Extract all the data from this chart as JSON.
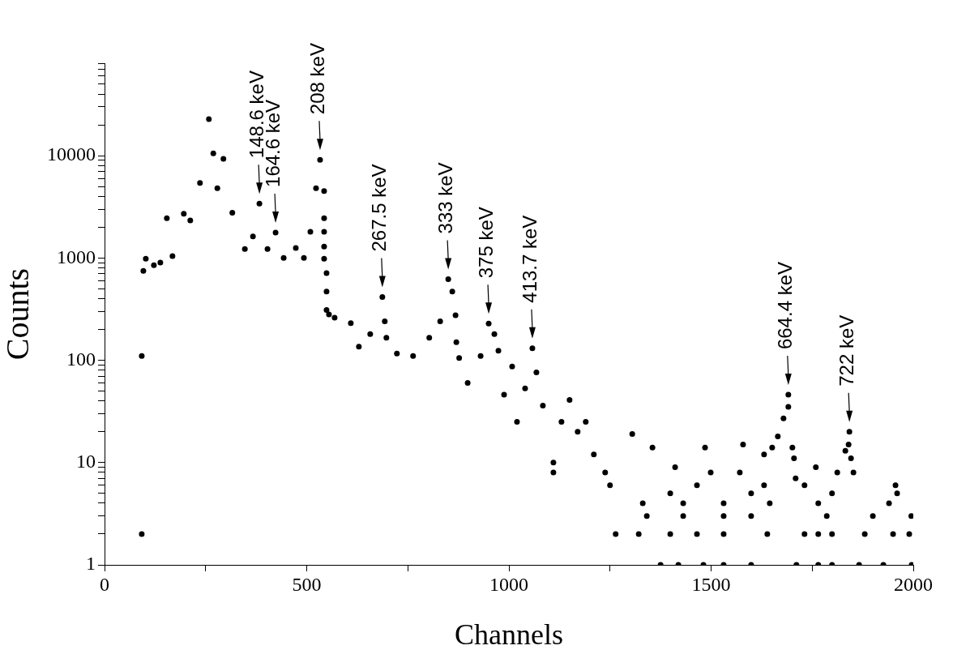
{
  "chart_data": {
    "type": "scatter",
    "xlabel": "Channels",
    "ylabel": "Counts",
    "log": "y",
    "grid": false,
    "legend": false,
    "marker": "circle",
    "xlim": [
      0,
      2000
    ],
    "ylim": [
      1,
      80000
    ],
    "xticks": [
      0,
      {
        "value": 250,
        "label": null
      },
      500,
      {
        "value": 750,
        "label": null
      },
      1000,
      {
        "value": 1250,
        "label": null
      },
      1500,
      {
        "value": 1750,
        "label": null
      },
      2000
    ],
    "yticks": [
      1,
      {
        "value": 2,
        "label": null
      },
      {
        "value": 3,
        "label": null
      },
      {
        "value": 4,
        "label": null
      },
      {
        "value": 5,
        "label": null
      },
      {
        "value": 6,
        "label": null
      },
      {
        "value": 7,
        "label": null
      },
      {
        "value": 8,
        "label": null
      },
      {
        "value": 9,
        "label": null
      },
      10,
      {
        "value": 20,
        "label": null
      },
      {
        "value": 30,
        "label": null
      },
      {
        "value": 40,
        "label": null
      },
      {
        "value": 50,
        "label": null
      },
      {
        "value": 60,
        "label": null
      },
      {
        "value": 70,
        "label": null
      },
      {
        "value": 80,
        "label": null
      },
      {
        "value": 90,
        "label": null
      },
      100,
      {
        "value": 200,
        "label": null
      },
      {
        "value": 300,
        "label": null
      },
      {
        "value": 400,
        "label": null
      },
      {
        "value": 500,
        "label": null
      },
      {
        "value": 600,
        "label": null
      },
      {
        "value": 700,
        "label": null
      },
      {
        "value": 800,
        "label": null
      },
      {
        "value": 900,
        "label": null
      },
      1000,
      {
        "value": 2000,
        "label": null
      },
      {
        "value": 3000,
        "label": null
      },
      {
        "value": 4000,
        "label": null
      },
      {
        "value": 5000,
        "label": null
      },
      {
        "value": 6000,
        "label": null
      },
      {
        "value": 7000,
        "label": null
      },
      {
        "value": 8000,
        "label": null
      },
      {
        "value": 9000,
        "label": null
      },
      10000,
      {
        "value": 20000,
        "label": null
      },
      {
        "value": 30000,
        "label": null
      },
      {
        "value": 40000,
        "label": null
      },
      {
        "value": 50000,
        "label": null
      },
      {
        "value": 60000,
        "label": null
      },
      {
        "value": 70000,
        "label": null
      },
      {
        "value": 80000,
        "label": null
      }
    ],
    "series": [
      {
        "color": "#000000",
        "x": [
          92,
          92,
          96,
          102,
          122,
          138,
          154,
          168,
          196,
          212,
          236,
          258,
          269,
          279,
          294,
          316,
          347,
          367,
          383,
          403,
          423,
          443,
          473,
          493,
          509,
          523,
          533,
          543,
          543,
          543,
          543,
          543,
          549,
          549,
          549,
          555,
          569,
          609,
          629,
          657,
          687,
          693,
          697,
          723,
          763,
          803,
          830,
          850,
          860,
          868,
          870,
          877,
          898,
          930,
          950,
          964,
          974,
          988,
          1008,
          1020,
          1040,
          1058,
          1068,
          1084,
          1110,
          1110,
          1130,
          1150,
          1170,
          1190,
          1210,
          1238,
          1250,
          1264,
          1305,
          1321,
          1331,
          1341,
          1355,
          1375,
          1399,
          1399,
          1411,
          1419,
          1431,
          1431,
          1465,
          1465,
          1481,
          1485,
          1499,
          1531,
          1531,
          1531,
          1531,
          1571,
          1579,
          1599,
          1599,
          1599,
          1631,
          1631,
          1639,
          1645,
          1651,
          1665,
          1679,
          1691,
          1691,
          1701,
          1705,
          1709,
          1711,
          1731,
          1731,
          1759,
          1765,
          1765,
          1765,
          1786,
          1799,
          1799,
          1799,
          1812,
          1832,
          1840,
          1842,
          1846,
          1852,
          1866,
          1880,
          1900,
          1926,
          1940,
          1950,
          1956,
          1960,
          1990,
          1995,
          1996
        ],
        "values": [
          110,
          2,
          747,
          980,
          850,
          900,
          2450,
          1040,
          2700,
          2330,
          5400,
          22700,
          10500,
          4800,
          9300,
          2760,
          1220,
          1620,
          3400,
          1220,
          1770,
          1000,
          1250,
          1000,
          1800,
          4800,
          9100,
          4500,
          2450,
          1800,
          1290,
          980,
          710,
          470,
          310,
          280,
          260,
          230,
          136,
          180,
          415,
          240,
          166,
          116,
          110,
          166,
          240,
          620,
          470,
          275,
          150,
          105,
          60,
          110,
          228,
          180,
          124,
          46,
          87,
          25,
          53,
          131,
          76,
          36,
          10,
          8,
          25,
          41,
          20,
          25,
          12,
          8,
          6,
          2,
          19,
          2,
          4,
          3,
          14,
          1,
          2,
          5,
          9,
          1,
          3,
          4,
          2,
          6,
          1,
          14,
          8,
          1,
          2,
          3,
          4,
          8,
          15,
          1,
          3,
          5,
          6,
          12,
          2,
          4,
          14,
          18,
          27,
          46,
          35,
          14,
          11,
          7,
          1,
          2,
          6,
          9,
          1,
          2,
          4,
          3,
          1,
          2,
          5,
          8,
          13,
          15,
          20,
          11,
          8,
          1,
          2,
          3,
          1,
          4,
          2,
          6,
          5,
          2,
          3,
          1
        ]
      }
    ],
    "annotations": [
      {
        "text": "148.6 keV",
        "x": 383,
        "y": 3400
      },
      {
        "text": "164.6 keV",
        "x": 423,
        "y": 1770
      },
      {
        "text": "208 keV",
        "x": 533,
        "y": 9100
      },
      {
        "text": "267.5 keV",
        "x": 687,
        "y": 415
      },
      {
        "text": "333 keV",
        "x": 850,
        "y": 620
      },
      {
        "text": "375 keV",
        "x": 950,
        "y": 228
      },
      {
        "text": "413.7 keV",
        "x": 1058,
        "y": 131
      },
      {
        "text": "664.4 keV",
        "x": 1691,
        "y": 46
      },
      {
        "text": "722 keV",
        "x": 1842,
        "y": 20
      }
    ]
  }
}
